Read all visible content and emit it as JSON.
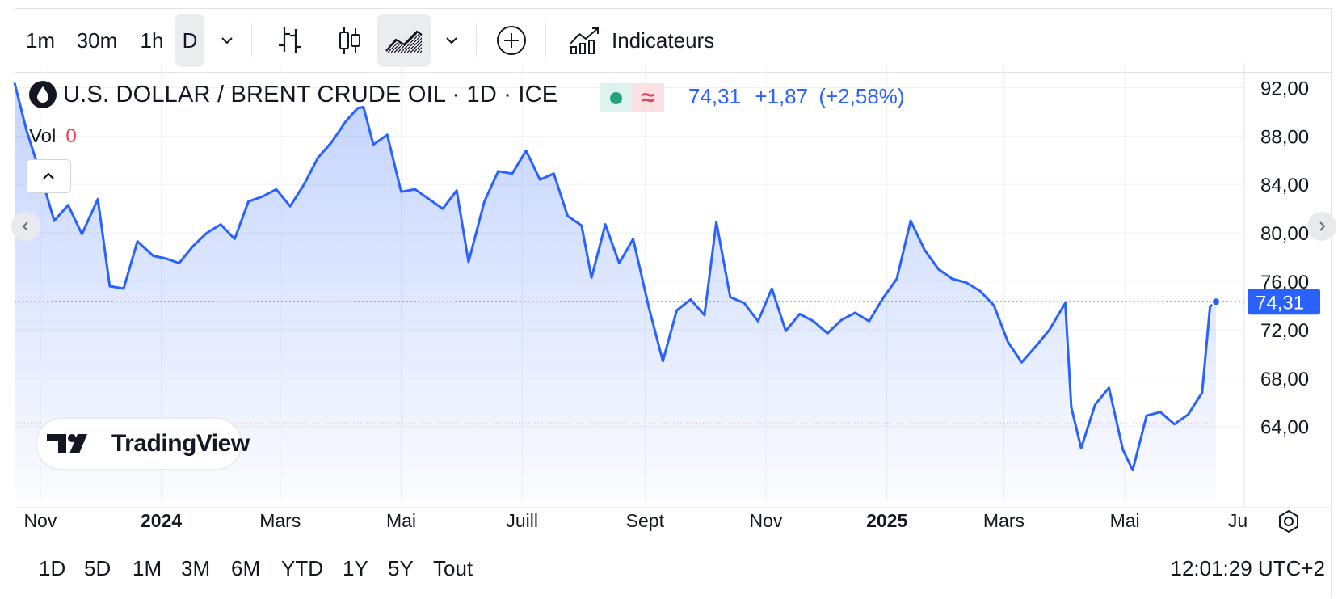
{
  "toolbar": {
    "intervals": [
      "1m",
      "30m",
      "1h",
      "D"
    ],
    "indicators_label": "Indicateurs"
  },
  "symbol": {
    "title": "U.S. DOLLAR / BRENT CRUDE OIL · 1D · ICE",
    "price": "74,31",
    "change": "+1,87",
    "change_pct": "(+2,58%)",
    "vol_label": "Vol",
    "vol_value": "0",
    "last_price_label": "74,31"
  },
  "logo_text": "TradingView",
  "ranges": [
    "1D",
    "5D",
    "1M",
    "3M",
    "6M",
    "YTD",
    "1Y",
    "5Y",
    "Tout"
  ],
  "clock": "12:01:29 UTC+2",
  "colors": {
    "line": "#2962ff",
    "badge": "#2962ff",
    "up": "#26a17b",
    "down": "#f23645"
  },
  "chart_data": {
    "type": "area",
    "series": [
      {
        "x": [
          "2023-10-19",
          "2023-10-25",
          "2023-11-01",
          "2023-11-08",
          "2023-11-15",
          "2023-11-22",
          "2023-11-30",
          "2023-12-06",
          "2023-12-13",
          "2023-12-20",
          "2023-12-28",
          "2024-01-03",
          "2024-01-10",
          "2024-01-17",
          "2024-01-24",
          "2024-01-31",
          "2024-02-07",
          "2024-02-14",
          "2024-02-21",
          "2024-02-28",
          "2024-03-06",
          "2024-03-13",
          "2024-03-20",
          "2024-03-27",
          "2024-04-03",
          "2024-04-09",
          "2024-04-12",
          "2024-04-17",
          "2024-04-24",
          "2024-05-01",
          "2024-05-08",
          "2024-05-15",
          "2024-05-22",
          "2024-05-29",
          "2024-06-04",
          "2024-06-12",
          "2024-06-19",
          "2024-06-26",
          "2024-07-03",
          "2024-07-10",
          "2024-07-17",
          "2024-07-24",
          "2024-07-31",
          "2024-08-05",
          "2024-08-12",
          "2024-08-19",
          "2024-08-26",
          "2024-09-03",
          "2024-09-10",
          "2024-09-17",
          "2024-09-24",
          "2024-10-01",
          "2024-10-07",
          "2024-10-14",
          "2024-10-21",
          "2024-10-28",
          "2024-11-04",
          "2024-11-11",
          "2024-11-18",
          "2024-11-25",
          "2024-12-02",
          "2024-12-09",
          "2024-12-16",
          "2024-12-23",
          "2024-12-30",
          "2025-01-06",
          "2025-01-13",
          "2025-01-20",
          "2025-01-27",
          "2025-02-03",
          "2025-02-10",
          "2025-02-17",
          "2025-02-24",
          "2025-03-03",
          "2025-03-10",
          "2025-03-17",
          "2025-03-24",
          "2025-04-01",
          "2025-04-04",
          "2025-04-09",
          "2025-04-16",
          "2025-04-23",
          "2025-04-30",
          "2025-05-05",
          "2025-05-12",
          "2025-05-19",
          "2025-05-26",
          "2025-06-02",
          "2025-06-09",
          "2025-06-13",
          "2025-06-16"
        ],
        "values": [
          92.4,
          88.5,
          84.9,
          81.0,
          82.3,
          79.9,
          82.8,
          75.6,
          75.4,
          79.3,
          78.1,
          77.9,
          77.5,
          78.9,
          80.0,
          80.7,
          79.5,
          82.6,
          83.0,
          83.6,
          82.2,
          84.0,
          86.2,
          87.5,
          89.2,
          90.3,
          90.4,
          87.3,
          88.1,
          83.4,
          83.6,
          82.8,
          82.0,
          83.5,
          77.6,
          82.6,
          85.1,
          84.9,
          86.8,
          84.4,
          84.9,
          81.4,
          80.6,
          76.3,
          80.7,
          77.5,
          79.5,
          73.8,
          69.4,
          73.6,
          74.5,
          73.2,
          80.9,
          74.7,
          74.2,
          72.7,
          75.4,
          71.9,
          73.3,
          72.7,
          71.7,
          72.8,
          73.4,
          72.7,
          74.6,
          76.2,
          81.0,
          78.6,
          77.0,
          76.2,
          75.9,
          75.2,
          74.0,
          71.0,
          69.3,
          70.6,
          72.0,
          74.2,
          65.6,
          62.2,
          65.8,
          67.2,
          62.1,
          60.4,
          64.9,
          65.2,
          64.2,
          65.0,
          66.8,
          73.9,
          74.31
        ]
      }
    ],
    "ylim": [
      58.5,
      93.5
    ],
    "yticks": [
      "92,00",
      "88,00",
      "84,00",
      "80,00",
      "76,00",
      "72,00",
      "68,00",
      "64,00"
    ],
    "xticks": [
      "Nov",
      "2024",
      "Mars",
      "Mai",
      "Juill",
      "Sept",
      "Nov",
      "2025",
      "Mars",
      "Mai",
      "Ju"
    ],
    "grid": true,
    "last_value": 74.31
  }
}
